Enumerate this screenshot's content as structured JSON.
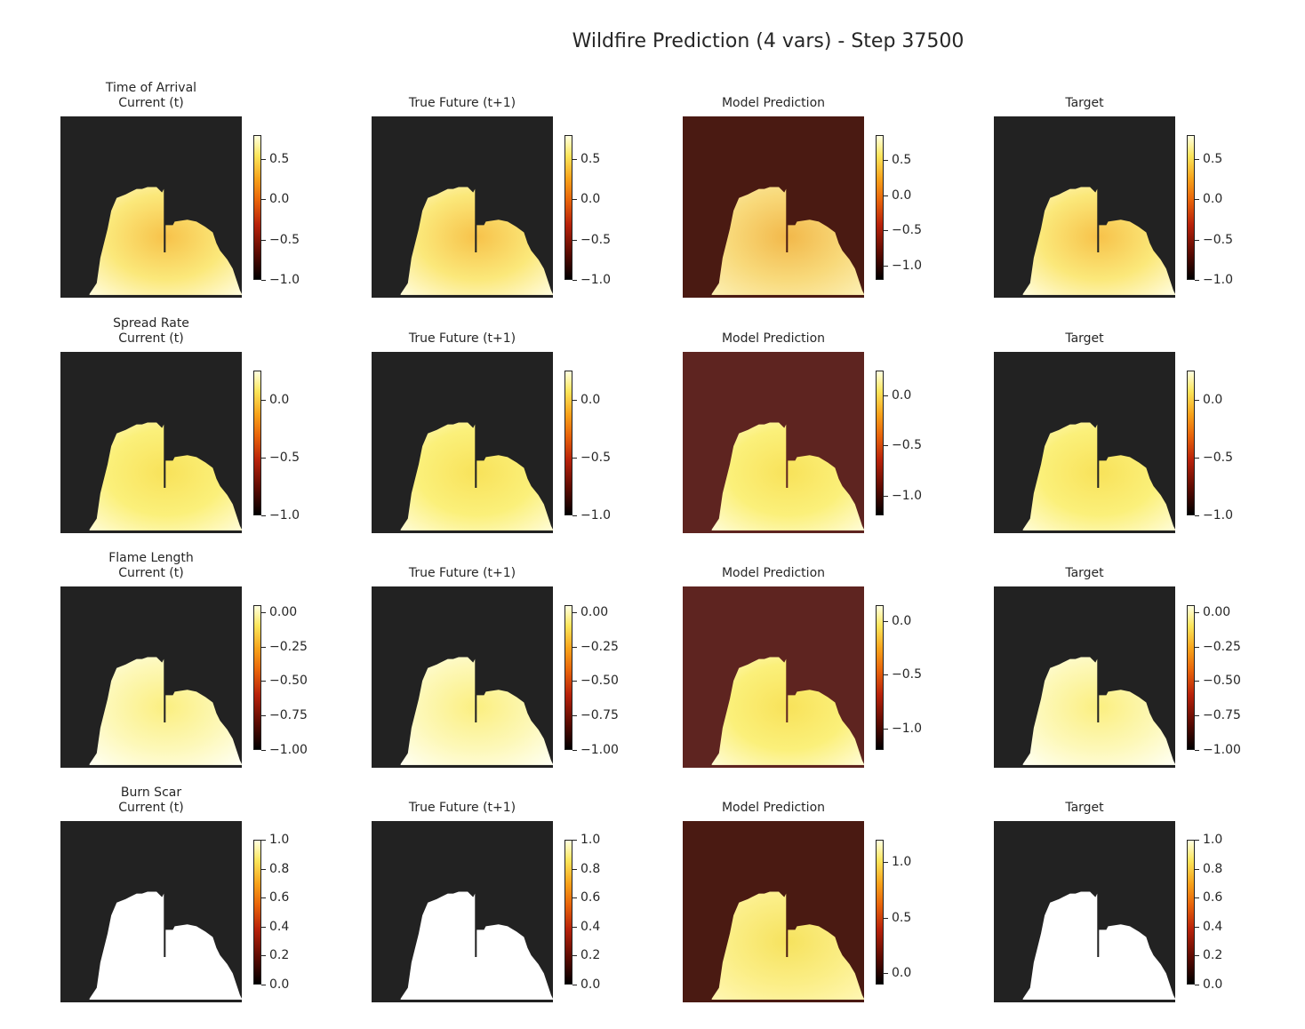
{
  "title": "Wildfire Prediction (4 vars) - Step 37500",
  "colors": {
    "background_dark": "#222222",
    "colormap": "afmhot"
  },
  "chart_data": {
    "type": "heatmap",
    "column_titles": [
      "Current (t)",
      "True Future (t+1)",
      "Model Prediction",
      "Target"
    ],
    "rows": [
      {
        "variable": "Time of Arrival",
        "panels": [
          {
            "title": "Time of Arrival\nCurrent (t)",
            "bg": "#222222",
            "fire": [
              "#f7c24a",
              "#fbe87a",
              "#fffbd8"
            ],
            "ticks": [
              "0.5",
              "0.0",
              "−0.5",
              "−1.0"
            ],
            "tick_values": [
              0.5,
              0.0,
              -0.5,
              -1.0
            ],
            "vmin": -1.0,
            "vmax": 0.8
          },
          {
            "title": "True Future (t+1)",
            "bg": "#222222",
            "fire": [
              "#f7c24a",
              "#fbe87a",
              "#fffbd8"
            ],
            "ticks": [
              "0.5",
              "0.0",
              "−0.5",
              "−1.0"
            ],
            "tick_values": [
              0.5,
              0.0,
              -0.5,
              -1.0
            ],
            "vmin": -1.0,
            "vmax": 0.8
          },
          {
            "title": "Model Prediction",
            "bg": "#4a1a12",
            "fire": [
              "#f2b84a",
              "#f8d97a",
              "#fceeb0"
            ],
            "ticks": [
              "0.5",
              "0.0",
              "−0.5",
              "−1.0"
            ],
            "tick_values": [
              0.5,
              0.0,
              -0.5,
              -1.0
            ],
            "vmin": -1.2,
            "vmax": 0.85
          },
          {
            "title": "Target",
            "bg": "#222222",
            "fire": [
              "#f7c24a",
              "#fbe87a",
              "#fffbd8"
            ],
            "ticks": [
              "0.5",
              "0.0",
              "−0.5",
              "−1.0"
            ],
            "tick_values": [
              0.5,
              0.0,
              -0.5,
              -1.0
            ],
            "vmin": -1.0,
            "vmax": 0.8
          }
        ]
      },
      {
        "variable": "Spread Rate",
        "panels": [
          {
            "title": "Spread Rate\nCurrent (t)",
            "bg": "#222222",
            "fire": [
              "#f8e25a",
              "#fbf07a",
              "#fffbd0"
            ],
            "ticks": [
              "0.0",
              "−0.5",
              "−1.0"
            ],
            "tick_values": [
              0.0,
              -0.5,
              -1.0
            ],
            "vmin": -1.0,
            "vmax": 0.25
          },
          {
            "title": "True Future (t+1)",
            "bg": "#222222",
            "fire": [
              "#f8e25a",
              "#fbf07a",
              "#fffbd0"
            ],
            "ticks": [
              "0.0",
              "−0.5",
              "−1.0"
            ],
            "tick_values": [
              0.0,
              -0.5,
              -1.0
            ],
            "vmin": -1.0,
            "vmax": 0.25
          },
          {
            "title": "Model Prediction",
            "bg": "#5e2420",
            "fire": [
              "#f8e25a",
              "#fbf07a",
              "#fffbd0"
            ],
            "ticks": [
              "0.0",
              "−0.5",
              "−1.0"
            ],
            "tick_values": [
              0.0,
              -0.5,
              -1.0
            ],
            "vmin": -1.2,
            "vmax": 0.25
          },
          {
            "title": "Target",
            "bg": "#222222",
            "fire": [
              "#f8e25a",
              "#fbf07a",
              "#fffbd0"
            ],
            "ticks": [
              "0.0",
              "−0.5",
              "−1.0"
            ],
            "tick_values": [
              0.0,
              -0.5,
              -1.0
            ],
            "vmin": -1.0,
            "vmax": 0.25
          }
        ]
      },
      {
        "variable": "Flame Length",
        "panels": [
          {
            "title": "Flame Length\nCurrent (t)",
            "bg": "#222222",
            "fire": [
              "#fbef80",
              "#fdf8b8",
              "#fffff0"
            ],
            "ticks": [
              "0.00",
              "−0.25",
              "−0.50",
              "−0.75",
              "−1.00"
            ],
            "tick_values": [
              0.0,
              -0.25,
              -0.5,
              -0.75,
              -1.0
            ],
            "vmin": -1.0,
            "vmax": 0.05
          },
          {
            "title": "True Future (t+1)",
            "bg": "#222222",
            "fire": [
              "#fbef80",
              "#fdf8b8",
              "#fffff0"
            ],
            "ticks": [
              "0.00",
              "−0.25",
              "−0.50",
              "−0.75",
              "−1.00"
            ],
            "tick_values": [
              0.0,
              -0.25,
              -0.5,
              -0.75,
              -1.0
            ],
            "vmin": -1.0,
            "vmax": 0.05
          },
          {
            "title": "Model Prediction",
            "bg": "#5e2420",
            "fire": [
              "#f8e25a",
              "#fbf07a",
              "#fffbd0"
            ],
            "ticks": [
              "0.0",
              "−0.5",
              "−1.0"
            ],
            "tick_values": [
              0.0,
              -0.5,
              -1.0
            ],
            "vmin": -1.2,
            "vmax": 0.15
          },
          {
            "title": "Target",
            "bg": "#222222",
            "fire": [
              "#fbef80",
              "#fdf8b8",
              "#fffff0"
            ],
            "ticks": [
              "0.00",
              "−0.25",
              "−0.50",
              "−0.75",
              "−1.00"
            ],
            "tick_values": [
              0.0,
              -0.25,
              -0.5,
              -0.75,
              -1.0
            ],
            "vmin": -1.0,
            "vmax": 0.05
          }
        ]
      },
      {
        "variable": "Burn Scar",
        "panels": [
          {
            "title": "Burn Scar\nCurrent (t)",
            "bg": "#222222",
            "fire": [
              "#ffffff",
              "#ffffff",
              "#ffffff"
            ],
            "ticks": [
              "1.0",
              "0.8",
              "0.6",
              "0.4",
              "0.2",
              "0.0"
            ],
            "tick_values": [
              1.0,
              0.8,
              0.6,
              0.4,
              0.2,
              0.0
            ],
            "vmin": 0.0,
            "vmax": 1.0
          },
          {
            "title": "True Future (t+1)",
            "bg": "#222222",
            "fire": [
              "#ffffff",
              "#ffffff",
              "#ffffff"
            ],
            "ticks": [
              "1.0",
              "0.8",
              "0.6",
              "0.4",
              "0.2",
              "0.0"
            ],
            "tick_values": [
              1.0,
              0.8,
              0.6,
              0.4,
              0.2,
              0.0
            ],
            "vmin": 0.0,
            "vmax": 1.0
          },
          {
            "title": "Model Prediction",
            "bg": "#4a1a12",
            "fire": [
              "#f6e25e",
              "#fbee86",
              "#fff6b0"
            ],
            "ticks": [
              "1.0",
              "0.5",
              "0.0"
            ],
            "tick_values": [
              1.0,
              0.5,
              0.0
            ],
            "vmin": -0.1,
            "vmax": 1.2
          },
          {
            "title": "Target",
            "bg": "#222222",
            "fire": [
              "#ffffff",
              "#ffffff",
              "#ffffff"
            ],
            "ticks": [
              "1.0",
              "0.8",
              "0.6",
              "0.4",
              "0.2",
              "0.0"
            ],
            "tick_values": [
              1.0,
              0.8,
              0.6,
              0.4,
              0.2,
              0.0
            ],
            "vmin": 0.0,
            "vmax": 1.0
          }
        ]
      }
    ]
  }
}
